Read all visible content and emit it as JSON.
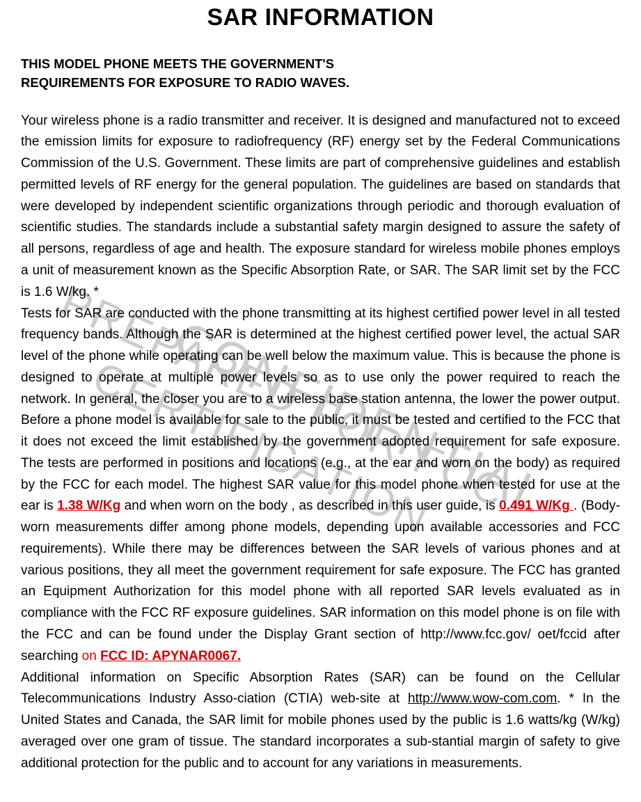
{
  "watermark": {
    "line1_a": "PREPARED FOR FCC",
    "line1_b": "CERTIFICATION",
    "line2": "CONFIDENTIAL",
    "color": "#cccccc"
  },
  "title": "SAR INFORMATION",
  "subheading_line1": "THIS MODEL PHONE MEETS THE GOVERNMENT'S",
  "subheading_line2": "REQUIREMENTS FOR EXPOSURE TO RADIO WAVES.",
  "para1": "Your wireless phone is a radio transmitter and receiver. It is designed and manufactured not to exceed the emission limits for exposure to radiofrequency (RF) energy set by the Federal Communications Commission of the U.S. Government. These limits are part of comprehensive guidelines and establish permitted levels of RF energy for the general population. The guidelines are based on standards that were developed by independent scientific organizations through periodic and thorough evaluation of scientific studies. The standards include a substantial safety margin designed to assure the safety of all persons, regardless of age and health. The exposure standard for wireless mobile phones employs a unit of measurement known as the Specific Absorption Rate, or SAR. The SAR limit set by the FCC is 1.6 W/kg. *",
  "para2_a": "Tests for SAR are conducted with the phone transmitting at its highest certified power level in all tested frequency bands. Although the SAR is determined at the highest certified power level, the actual SAR level of the phone while operating can be well below the maximum value. This is because the phone is designed to operate at multiple power levels so as to use only the power required to reach the network. In general, the closer you are to a wireless base station antenna, the lower the power output. Before a phone model is available for sale to the public, it must be tested and certified to the FCC that it does not exceed the limit established by the government adopted requirement for safe exposure. The tests are performed in positions and locations (e.g., at the ear and worn on the body) as required by the FCC for each model. The highest SAR value for this model phone when tested for use at the ear is ",
  "sar_ear": "1.38 W/Kg",
  "para2_b": " and when worn on the body , as described in this user guide, is ",
  "sar_body": "0.491 W/Kg ",
  "para2_c": ". (Body-worn measurements differ among phone models, depending upon available accessories and FCC requirements). While there may be differences between the SAR levels of various phones and at various positions, they all meet the government requirement for safe exposure. The FCC has granted an Equipment Authorization for this model phone with all reported SAR levels evaluated as in compliance with the FCC RF exposure guidelines. SAR information on this model phone is on file with the FCC and can be found under the Display Grant section of http://www.fcc.gov/ oet/fccid after searching ",
  "on_word": "on",
  "fcc_id": "FCC ID: APYNAR0067. ",
  "para3_a": "Additional information on Specific Absorption Rates (SAR) can be found on the Cellular Telecommunications Industry Asso-ciation (CTIA) web-site at ",
  "ctia_url": "http://www.wow-com.com",
  "para3_b": ". * In the United States and Canada, the SAR limit for mobile phones used by the public is 1.6 watts/kg (W/kg) averaged over one gram of tissue. The standard incorporates a sub-stantial margin of safety to give additional protection for the public and to account for any variations in measurements.",
  "colors": {
    "text": "#000000",
    "highlight": "#d40000",
    "background": "#ffffff"
  },
  "typography": {
    "title_fontsize": 34,
    "subhead_fontsize": 18.5,
    "body_fontsize": 19,
    "line_height": 1.62,
    "font_family": "Arial"
  }
}
